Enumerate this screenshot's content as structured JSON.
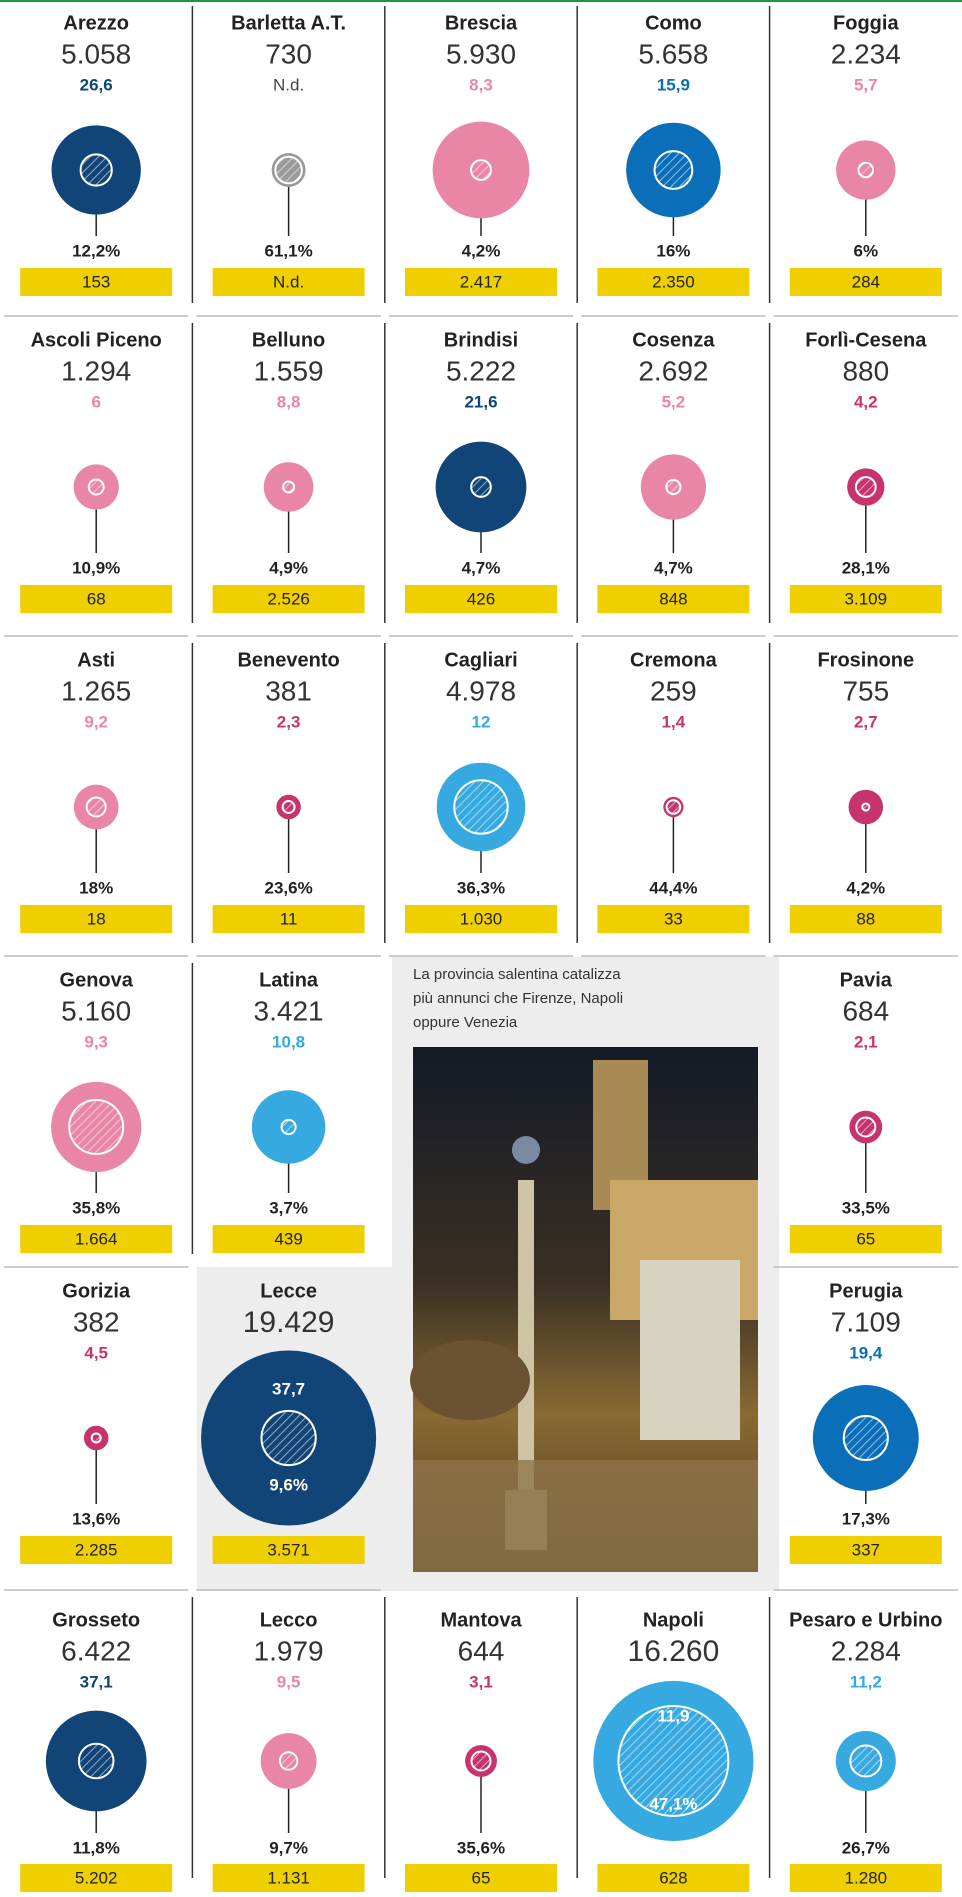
{
  "caption": [
    "La provincia salentina catalizza",
    "più annunci che Firenze, Napoli",
    "oppure Venezia"
  ],
  "rows": [
    [
      {
        "name": "Arezzo",
        "total": {
          "value": 5058,
          "label": "5.058"
        },
        "share": "26,6",
        "color": "#114578",
        "pct": {
          "value": 12.2,
          "label": "12,2%"
        },
        "count": "153"
      },
      {
        "name": "Barletta A.T.",
        "total": {
          "value": 730,
          "label": "730"
        },
        "share": "N.d.",
        "color": "#9a9a9a",
        "pct": {
          "value": 61.1,
          "label": "61,1%"
        },
        "count": "N.d."
      },
      {
        "name": "Brescia",
        "total": {
          "value": 5930,
          "label": "5.930"
        },
        "share": "8,3",
        "color": "#e986a6",
        "pct": {
          "value": 4.2,
          "label": "4,2%"
        },
        "count": "2.417"
      },
      {
        "name": "Como",
        "total": {
          "value": 5658,
          "label": "5.658"
        },
        "share": "15,9",
        "color": "#0a6fb8",
        "pct": {
          "value": 16,
          "label": "16%"
        },
        "count": "2.350"
      },
      {
        "name": "Foggia",
        "total": {
          "value": 2234,
          "label": "2.234"
        },
        "share": "5,7",
        "color": "#e986a6",
        "pct": {
          "value": 6,
          "label": "6%"
        },
        "count": "284"
      }
    ],
    [
      {
        "name": "Ascoli Piceno",
        "total": {
          "value": 1294,
          "label": "1.294"
        },
        "share": "6",
        "color": "#e986a6",
        "pct": {
          "value": 10.9,
          "label": "10,9%"
        },
        "count": "68"
      },
      {
        "name": "Belluno",
        "total": {
          "value": 1559,
          "label": "1.559"
        },
        "share": "8,8",
        "color": "#e986a6",
        "pct": {
          "value": 4.9,
          "label": "4,9%"
        },
        "count": "2.526"
      },
      {
        "name": "Brindisi",
        "total": {
          "value": 5222,
          "label": "5.222"
        },
        "share": "21,6",
        "color": "#114578",
        "pct": {
          "value": 4.7,
          "label": "4,7%"
        },
        "count": "426"
      },
      {
        "name": "Cosenza",
        "total": {
          "value": 2692,
          "label": "2.692"
        },
        "share": "5,2",
        "color": "#e986a6",
        "pct": {
          "value": 4.7,
          "label": "4,7%"
        },
        "count": "848"
      },
      {
        "name": "Forlì-Cesena",
        "total": {
          "value": 880,
          "label": "880"
        },
        "share": "4,2",
        "color": "#c7336c",
        "pct": {
          "value": 28.1,
          "label": "28,1%"
        },
        "count": "3.109"
      }
    ],
    [
      {
        "name": "Asti",
        "total": {
          "value": 1265,
          "label": "1.265"
        },
        "share": "9,2",
        "color": "#e986a6",
        "pct": {
          "value": 18,
          "label": "18%"
        },
        "count": "18"
      },
      {
        "name": "Benevento",
        "total": {
          "value": 381,
          "label": "381"
        },
        "share": "2,3",
        "color": "#c7336c",
        "pct": {
          "value": 23.6,
          "label": "23,6%"
        },
        "count": "11"
      },
      {
        "name": "Cagliari",
        "total": {
          "value": 4978,
          "label": "4.978"
        },
        "share": "12",
        "color": "#36a9e1",
        "pct": {
          "value": 36.3,
          "label": "36,3%"
        },
        "count": "1.030"
      },
      {
        "name": "Cremona",
        "total": {
          "value": 259,
          "label": "259"
        },
        "share": "1,4",
        "color": "#c7336c",
        "pct": {
          "value": 44.4,
          "label": "44,4%"
        },
        "count": "33"
      },
      {
        "name": "Frosinone",
        "total": {
          "value": 755,
          "label": "755"
        },
        "share": "2,7",
        "color": "#c7336c",
        "pct": {
          "value": 4.2,
          "label": "4,2%"
        },
        "count": "88"
      }
    ],
    [
      {
        "name": "Genova",
        "total": {
          "value": 5160,
          "label": "5.160"
        },
        "share": "9,3",
        "color": "#e986a6",
        "pct": {
          "value": 35.8,
          "label": "35,8%"
        },
        "count": "1.664"
      },
      {
        "name": "Latina",
        "total": {
          "value": 3421,
          "label": "3.421"
        },
        "share": "10,8",
        "color": "#36a9e1",
        "pct": {
          "value": 3.7,
          "label": "3,7%"
        },
        "count": "439"
      },
      {
        "name": "Pavia",
        "total": {
          "value": 684,
          "label": "684"
        },
        "share": "2,1",
        "color": "#c7336c",
        "pct": {
          "value": 33.5,
          "label": "33,5%"
        },
        "count": "65"
      }
    ],
    [
      {
        "name": "Gorizia",
        "total": {
          "value": 382,
          "label": "382"
        },
        "share": "4,5",
        "color": "#c7336c",
        "pct": {
          "value": 13.6,
          "label": "13,6%"
        },
        "count": "2.285"
      },
      {
        "name": "Lecce",
        "total": {
          "value": 19429,
          "label": "19.429"
        },
        "share": "37,7",
        "color": "#114578",
        "pct": {
          "value": 9.6,
          "label": "9,6%"
        },
        "count": "3.571"
      },
      {
        "name": "Perugia",
        "total": {
          "value": 7109,
          "label": "7.109"
        },
        "share": "19,4",
        "color": "#0a6fb8",
        "pct": {
          "value": 17.3,
          "label": "17,3%"
        },
        "count": "337"
      }
    ],
    [
      {
        "name": "Grosseto",
        "total": {
          "value": 6422,
          "label": "6.422"
        },
        "share": "37,1",
        "color": "#114578",
        "pct": {
          "value": 11.8,
          "label": "11,8%"
        },
        "count": "5.202"
      },
      {
        "name": "Lecco",
        "total": {
          "value": 1979,
          "label": "1.979"
        },
        "share": "9,5",
        "color": "#e986a6",
        "pct": {
          "value": 9.7,
          "label": "9,7%"
        },
        "count": "1.131"
      },
      {
        "name": "Mantova",
        "total": {
          "value": 644,
          "label": "644"
        },
        "share": "3,1",
        "color": "#c7336c",
        "pct": {
          "value": 35.6,
          "label": "35,6%"
        },
        "count": "65"
      },
      {
        "name": "Napoli",
        "total": {
          "value": 16260,
          "label": "16.260"
        },
        "share": "11,9",
        "color": "#36a9e1",
        "pct": {
          "value": 47.1,
          "label": "47,1%"
        },
        "count": "628"
      },
      {
        "name": "Pesaro e Urbino",
        "total": {
          "value": 2284,
          "label": "2.284"
        },
        "share": "11,2",
        "color": "#36a9e1",
        "pct": {
          "value": 26.7,
          "label": "26,7%"
        },
        "count": "1.280"
      }
    ]
  ]
}
